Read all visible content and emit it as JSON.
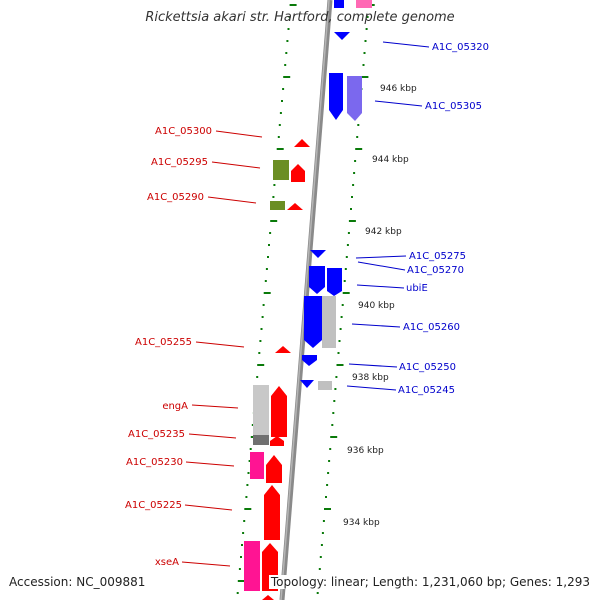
{
  "title": "Rickettsia akari str. Hartford, complete genome",
  "accession": "Accession: NC_009881",
  "topology_info": "Topology: linear; Length: 1,231,060 bp; Genes: 1,293",
  "colors": {
    "forward_gene": "#ff0000",
    "reverse_gene": "#0000ff",
    "pink_gene": "#ff1493",
    "olive_gene": "#6b8e23",
    "grey_gene": "#b0b0b0",
    "purple_gene": "#7b68ee",
    "tick": "#0a7a0a",
    "axis": "#808080",
    "left_label": "#cc0000",
    "right_label": "#0000cc"
  },
  "scale_labels": [
    "946 kbp",
    "944 kbp",
    "942 kbp",
    "940 kbp",
    "938 kbp",
    "936 kbp",
    "934 kbp"
  ],
  "left_labels": [
    "A1C_05300",
    "A1C_05295",
    "A1C_05290",
    "A1C_05255",
    "engA",
    "A1C_05235",
    "A1C_05230",
    "A1C_05225",
    "xseA"
  ],
  "right_labels": [
    "A1C_05320",
    "A1C_05305",
    "A1C_05275",
    "A1C_05270",
    "ubiE",
    "A1C_05260",
    "A1C_05250",
    "A1C_05245"
  ]
}
